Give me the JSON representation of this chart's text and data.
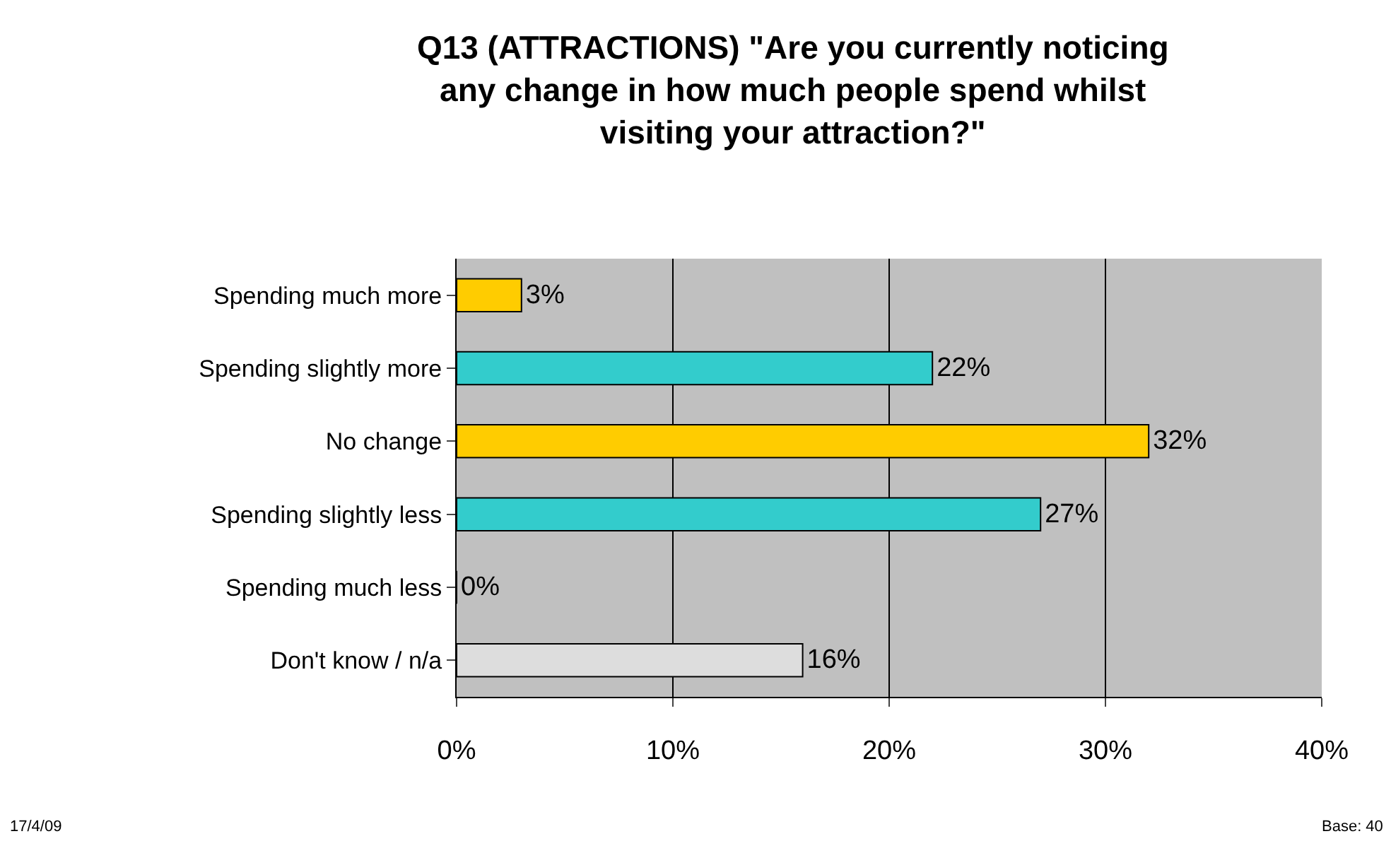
{
  "chart_data": {
    "type": "bar",
    "orientation": "horizontal",
    "title": "Q13 (ATTRACTIONS) \"Are you currently noticing any change in how much people spend whilst visiting your attraction?\"",
    "categories": [
      "Spending much more",
      "Spending slightly more",
      "No change",
      "Spending slightly less",
      "Spending much less",
      "Don't know / n/a"
    ],
    "values": [
      3,
      22,
      32,
      27,
      0,
      16
    ],
    "colors": [
      "#ffcc00",
      "#33cccc",
      "#ffcc00",
      "#33cccc",
      null,
      "#dddddd"
    ],
    "value_labels": [
      "3%",
      "22%",
      "32%",
      "27%",
      "0%",
      "16%"
    ],
    "xlim": [
      0,
      40
    ],
    "xticks": [
      {
        "value": 0,
        "label": "0%"
      },
      {
        "value": 10,
        "label": "10%"
      },
      {
        "value": 20,
        "label": "20%"
      },
      {
        "value": 30,
        "label": "30%"
      },
      {
        "value": 40,
        "label": "40%"
      }
    ],
    "grid": "x",
    "legend": false,
    "annotations": [
      "17/4/09",
      "Base: 40"
    ]
  }
}
